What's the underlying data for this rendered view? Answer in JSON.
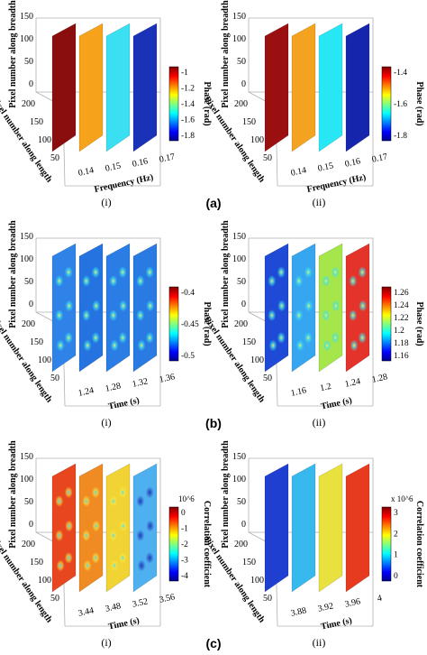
{
  "figure": {
    "rows": [
      {
        "label": "(a)",
        "panels": [
          {
            "label": "(i)",
            "ylabel": "Pixel number along breadth",
            "zlabel": "Pixel number along length",
            "xlabel": "Frequency (Hz)",
            "yticks": [
              "0",
              "50",
              "100",
              "150"
            ],
            "zticks": [
              "50",
              "100",
              "150",
              "200"
            ],
            "xticks": [
              "0.14",
              "0.15",
              "0.16",
              "0.17"
            ],
            "colorbar": {
              "label": "Phase (rad)",
              "ticks": [
                "-1",
                "-1.2",
                "-1.4",
                "-1.6",
                "-1.8"
              ],
              "multiplier": ""
            },
            "slices": [
              {
                "base": "#8b0e0e",
                "style": "flat"
              },
              {
                "base": "#f7a21b",
                "style": "flat"
              },
              {
                "base": "#3ae0f2",
                "style": "flat"
              },
              {
                "base": "#1a32b8",
                "style": "flat"
              }
            ]
          },
          {
            "label": "(ii)",
            "ylabel": "Pixel number along breadth",
            "zlabel": "Pixel number along length",
            "xlabel": "Frequency (Hz)",
            "yticks": [
              "0",
              "50",
              "100",
              "150"
            ],
            "zticks": [
              "50",
              "100",
              "150",
              "200"
            ],
            "xticks": [
              "0.14",
              "0.15",
              "0.16",
              "0.17"
            ],
            "colorbar": {
              "label": "Phase (rad)",
              "ticks": [
                "-1.4",
                "-1.6",
                "-1.8"
              ],
              "multiplier": ""
            },
            "slices": [
              {
                "base": "#9a1010",
                "style": "flat"
              },
              {
                "base": "#f3a31f",
                "style": "flat"
              },
              {
                "base": "#27e7f5",
                "style": "flat"
              },
              {
                "base": "#1526ad",
                "style": "flat"
              }
            ]
          }
        ]
      },
      {
        "label": "(b)",
        "panels": [
          {
            "label": "(i)",
            "ylabel": "Pixel number along breadth",
            "zlabel": "Pixel number along length",
            "xlabel": "Time (s)",
            "yticks": [
              "0",
              "50",
              "100",
              "150"
            ],
            "zticks": [
              "50",
              "100",
              "150",
              "200"
            ],
            "xticks": [
              "1.24",
              "1.28",
              "1.32",
              "1.36"
            ],
            "colorbar": {
              "label": "Phase (rad)",
              "ticks": [
                "-0.4",
                "-0.45",
                "-0.5"
              ],
              "multiplier": ""
            },
            "slices": [
              {
                "base": "#2f83e8",
                "style": "spots"
              },
              {
                "base": "#2573e0",
                "style": "spots"
              },
              {
                "base": "#2b7de6",
                "style": "spots"
              },
              {
                "base": "#2a7ae4",
                "style": "spots"
              }
            ]
          },
          {
            "label": "(ii)",
            "ylabel": "Pixel number along breadth",
            "zlabel": "Pixel number along length",
            "xlabel": "Time (s)",
            "yticks": [
              "0",
              "50",
              "100",
              "150"
            ],
            "zticks": [
              "50",
              "100",
              "150",
              "200"
            ],
            "xticks": [
              "1.16",
              "1.2",
              "1.24",
              "1.28"
            ],
            "colorbar": {
              "label": "Phase (rad)",
              "ticks": [
                "1.26",
                "1.24",
                "1.22",
                "1.2",
                "1.18",
                "1.16"
              ],
              "multiplier": ""
            },
            "slices": [
              {
                "base": "#1f4ad6",
                "style": "spots"
              },
              {
                "base": "#37a6f0",
                "style": "spots"
              },
              {
                "base": "#a5e64a",
                "style": "spots"
              },
              {
                "base": "#e3332a",
                "style": "spots"
              }
            ]
          }
        ]
      },
      {
        "label": "(c)",
        "panels": [
          {
            "label": "(i)",
            "ylabel": "Pixel number along breadth",
            "zlabel": "Pixel number along length",
            "xlabel": "Time (s)",
            "yticks": [
              "0",
              "50",
              "100",
              "150"
            ],
            "zticks": [
              "50",
              "100",
              "150",
              "200"
            ],
            "xticks": [
              "3.44",
              "3.48",
              "3.52",
              "3.56"
            ],
            "colorbar": {
              "label": "Correlation coefficient",
              "ticks": [
                "0",
                "-1",
                "-2",
                "-3",
                "-4"
              ],
              "multiplier": "10^6"
            },
            "slices": [
              {
                "base": "#e8461f",
                "style": "hot"
              },
              {
                "base": "#f08a22",
                "style": "hot"
              },
              {
                "base": "#f2d334",
                "style": "hot"
              },
              {
                "base": "#4fb0f0",
                "style": "cool"
              }
            ]
          },
          {
            "label": "(ii)",
            "ylabel": "Pixel number along breadth",
            "zlabel": "Pixel number along length",
            "xlabel": "Time (s)",
            "yticks": [
              "0",
              "50",
              "100",
              "150"
            ],
            "zticks": [
              "50",
              "100",
              "150",
              "200"
            ],
            "xticks": [
              "3.88",
              "3.92",
              "3.96",
              "4"
            ],
            "colorbar": {
              "label": "Correlation coefficient",
              "ticks": [
                "3",
                "2",
                "1",
                "0"
              ],
              "multiplier": "x 10^6"
            },
            "slices": [
              {
                "base": "#1f3fd0",
                "style": "flat"
              },
              {
                "base": "#37b9ee",
                "style": "flat"
              },
              {
                "base": "#e9e23e",
                "style": "flat"
              },
              {
                "base": "#e63b1e",
                "style": "flat"
              }
            ]
          }
        ]
      }
    ]
  }
}
